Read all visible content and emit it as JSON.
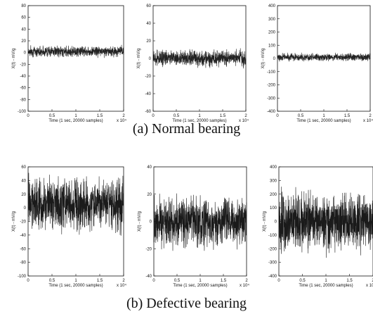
{
  "captions": {
    "a": "(a) Normal bearing",
    "b": "(b) Defective bearing"
  },
  "chart_data": [
    {
      "type": "line",
      "row": "a",
      "title": "",
      "xlabel": "Time (1 sec, 20000 samples)",
      "ylabel": "X(t) - mV/g",
      "xlim": [
        0,
        2
      ],
      "x_exponent": "x 10⁴",
      "xticks": [
        "0",
        "0.5",
        "1",
        "1.5",
        "2"
      ],
      "ylim": [
        -100,
        80
      ],
      "yticks": [
        "80",
        "60",
        "40",
        "20",
        "0",
        "-20",
        "-40",
        "-60",
        "-80",
        "-100"
      ],
      "series": [
        {
          "center": 2,
          "amplitude": 11,
          "color": "#222222"
        }
      ]
    },
    {
      "type": "line",
      "row": "a",
      "title": "",
      "xlabel": "Time (1 sec, 20000 samples)",
      "ylabel": "X(t) - mV/g",
      "xlim": [
        0,
        2
      ],
      "x_exponent": "x 10⁴",
      "xticks": [
        "0",
        "0.5",
        "1",
        "1.5",
        "2"
      ],
      "ylim": [
        -60,
        60
      ],
      "yticks": [
        "60",
        "40",
        "20",
        "0",
        "-20",
        "-40",
        "-60"
      ],
      "series": [
        {
          "center": 0,
          "amplitude": 11,
          "color": "#222222"
        }
      ]
    },
    {
      "type": "line",
      "row": "a",
      "title": "",
      "xlabel": "Time (1 sec, 20000 samples)",
      "ylabel": "X(t) - mV/g",
      "xlim": [
        0,
        2
      ],
      "x_exponent": "x 10⁴",
      "xticks": [
        "0",
        "0.5",
        "1",
        "1.5",
        "2"
      ],
      "ylim": [
        -400,
        400
      ],
      "yticks": [
        "400",
        "300",
        "200",
        "100",
        "0",
        "-100",
        "-200",
        "-300",
        "-400"
      ],
      "series": [
        {
          "center": 10,
          "amplitude": 35,
          "color": "#222222"
        }
      ]
    },
    {
      "type": "line",
      "row": "b",
      "title": "",
      "xlabel": "Time (1 sec, 20000 samples)",
      "ylabel": "X(t) - mV/g",
      "xlim": [
        0,
        2
      ],
      "x_exponent": "x 10⁴",
      "xticks": [
        "0",
        "0.5",
        "1",
        "1.5",
        "2"
      ],
      "ylim": [
        -100,
        60
      ],
      "yticks": [
        "60",
        "40",
        "20",
        "0",
        "-20",
        "-40",
        "-60",
        "-80",
        "-100"
      ],
      "series": [
        {
          "center": 5,
          "amplitude": 45,
          "color": "#1a1a1a"
        }
      ]
    },
    {
      "type": "line",
      "row": "b",
      "title": "",
      "xlabel": "Time (1 sec, 20000 samples)",
      "ylabel": "X(t) - mV/g",
      "xlim": [
        0,
        2
      ],
      "x_exponent": "x 10⁴",
      "xticks": [
        "0",
        "0.5",
        "1",
        "1.5",
        "2"
      ],
      "ylim": [
        -40,
        40
      ],
      "yticks": [
        "40",
        "20",
        "0",
        "-20",
        "-40"
      ],
      "series": [
        {
          "center": 0,
          "amplitude": 22,
          "color": "#1a1a1a"
        }
      ]
    },
    {
      "type": "line",
      "row": "b",
      "title": "",
      "xlabel": "Time (1 sec, 20000 samples)",
      "ylabel": "X(t) - mV/g",
      "xlim": [
        0,
        2
      ],
      "x_exponent": "x 10⁴",
      "xticks": [
        "0",
        "0.5",
        "1",
        "1.5",
        "2"
      ],
      "ylim": [
        -400,
        400
      ],
      "yticks": [
        "400",
        "300",
        "200",
        "100",
        "0",
        "-100",
        "-200",
        "-300",
        "-400"
      ],
      "series": [
        {
          "center": 0,
          "amplitude": 260,
          "color": "#1a1a1a"
        }
      ]
    }
  ]
}
